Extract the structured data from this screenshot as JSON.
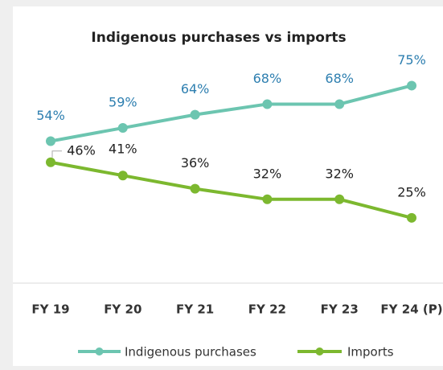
{
  "chart_data": {
    "type": "line",
    "title": "Indigenous purchases vs imports",
    "categories": [
      "FY 19",
      "FY 20",
      "FY 21",
      "FY 22",
      "FY 23",
      "FY 24 (P)"
    ],
    "ylim": [
      0,
      80
    ],
    "series": [
      {
        "name": "Indigenous purchases",
        "color": "#6cc5b0",
        "label_color": "#2e7fb0",
        "values": [
          54,
          59,
          64,
          68,
          68,
          75
        ],
        "value_labels": [
          "54%",
          "59%",
          "64%",
          "68%",
          "68%",
          "75%"
        ]
      },
      {
        "name": "Imports",
        "color": "#7cb82f",
        "label_color": "#222222",
        "values": [
          46,
          41,
          36,
          32,
          32,
          25
        ],
        "value_labels": [
          "46%",
          "41%",
          "36%",
          "32%",
          "32%",
          "25%"
        ]
      }
    ]
  }
}
